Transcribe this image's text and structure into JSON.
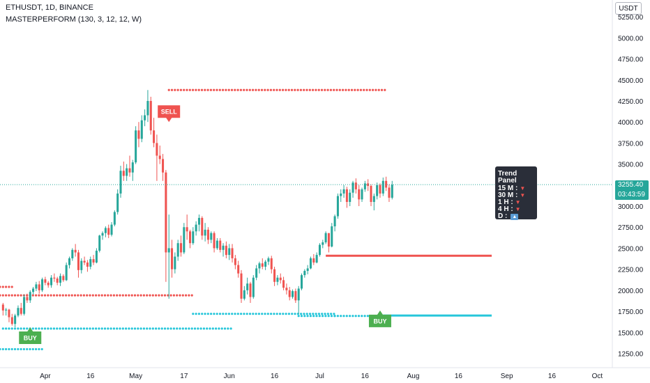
{
  "header": {
    "symbol_line": "ETHUSDT, 1D, BINANCE",
    "indicator_line": "MASTERPERFORM (130, 3, 12, 12, W)"
  },
  "price_axis": {
    "currency": "USDT",
    "last_price": "3255.40",
    "countdown": "03:43:59"
  },
  "trend_panel": {
    "title": "Trend Panel",
    "rows": [
      {
        "label": "15 M :",
        "trend": "down"
      },
      {
        "label": "30 M :",
        "trend": "down"
      },
      {
        "label": "1 H :",
        "trend": "down"
      },
      {
        "label": "4 H :",
        "trend": "down"
      },
      {
        "label": "D :",
        "trend": "up"
      }
    ]
  },
  "chart_data": {
    "type": "candlestick",
    "symbol": "ETHUSDT",
    "interval": "1D",
    "exchange": "BINANCE",
    "y_ticks": [
      1250,
      1500,
      1750,
      2000,
      2250,
      2500,
      2750,
      3000,
      3250,
      3500,
      3750,
      4000,
      4250,
      4500,
      4750,
      5000,
      5250
    ],
    "y_tick_labels": [
      "1250.00",
      "1500.00",
      "1750.00",
      "2000.00",
      "2250.00",
      "2500.00",
      "2750.00",
      "3000.00",
      "3250.00",
      "3500.00",
      "3750.00",
      "4000.00",
      "4250.00",
      "4500.00",
      "4750.00",
      "5000.00",
      "5250.00"
    ],
    "x_ticks": [
      "2021-04-01",
      "2021-04-16",
      "2021-05-01",
      "2021-05-17",
      "2021-06-01",
      "2021-06-16",
      "2021-07-01",
      "2021-07-16",
      "2021-08-01",
      "2021-08-16",
      "2021-09-01",
      "2021-09-16",
      "2021-10-01"
    ],
    "x_tick_labels": [
      "Apr",
      "16",
      "May",
      "17",
      "Jun",
      "16",
      "Jul",
      "16",
      "Aug",
      "16",
      "Sep",
      "16",
      "Oct"
    ],
    "ylim": [
      1080,
      5450
    ],
    "xlim": [
      "2021-03-17",
      "2021-10-06"
    ],
    "last_price": 3255.4,
    "up_color": "#26a69a",
    "down_color": "#ef5350",
    "ohlc_start": "2021-03-18",
    "ohlc": [
      [
        1830,
        1850,
        1700,
        1760
      ],
      [
        1760,
        1790,
        1700,
        1770
      ],
      [
        1770,
        1780,
        1620,
        1680
      ],
      [
        1680,
        1720,
        1580,
        1600
      ],
      [
        1600,
        1720,
        1560,
        1700
      ],
      [
        1700,
        1820,
        1680,
        1790
      ],
      [
        1790,
        1850,
        1700,
        1720
      ],
      [
        1720,
        1950,
        1700,
        1920
      ],
      [
        1920,
        1960,
        1850,
        1880
      ],
      [
        1880,
        2000,
        1850,
        1980
      ],
      [
        1980,
        2040,
        1950,
        2020
      ],
      [
        2020,
        2100,
        1990,
        2070
      ],
      [
        2070,
        2110,
        1960,
        2000
      ],
      [
        2000,
        2150,
        1980,
        2130
      ],
      [
        2130,
        2160,
        2060,
        2090
      ],
      [
        2090,
        2110,
        2030,
        2060
      ],
      [
        2060,
        2180,
        2030,
        2150
      ],
      [
        2150,
        2200,
        2100,
        2140
      ],
      [
        2140,
        2160,
        2060,
        2090
      ],
      [
        2090,
        2200,
        2050,
        2170
      ],
      [
        2170,
        2190,
        2100,
        2120
      ],
      [
        2120,
        2330,
        2110,
        2300
      ],
      [
        2300,
        2400,
        2260,
        2380
      ],
      [
        2380,
        2500,
        2350,
        2480
      ],
      [
        2480,
        2550,
        2400,
        2450
      ],
      [
        2450,
        2480,
        2150,
        2240
      ],
      [
        2240,
        2380,
        2200,
        2350
      ],
      [
        2350,
        2400,
        2300,
        2330
      ],
      [
        2330,
        2360,
        2220,
        2280
      ],
      [
        2280,
        2400,
        2250,
        2370
      ],
      [
        2370,
        2420,
        2300,
        2330
      ],
      [
        2330,
        2500,
        2320,
        2470
      ],
      [
        2470,
        2660,
        2450,
        2650
      ],
      [
        2650,
        2700,
        2600,
        2680
      ],
      [
        2680,
        2760,
        2630,
        2740
      ],
      [
        2740,
        2780,
        2620,
        2660
      ],
      [
        2660,
        2810,
        2640,
        2780
      ],
      [
        2780,
        2950,
        2760,
        2930
      ],
      [
        2930,
        3200,
        2900,
        3150
      ],
      [
        3150,
        3480,
        3100,
        3420
      ],
      [
        3420,
        3530,
        3300,
        3360
      ],
      [
        3360,
        3500,
        3300,
        3450
      ],
      [
        3450,
        3600,
        3350,
        3400
      ],
      [
        3400,
        3550,
        3300,
        3520
      ],
      [
        3520,
        3950,
        3500,
        3900
      ],
      [
        3900,
        4000,
        3700,
        3800
      ],
      [
        3800,
        4080,
        3760,
        4020
      ],
      [
        4020,
        4150,
        3950,
        4080
      ],
      [
        4080,
        4380,
        4000,
        4250
      ],
      [
        4250,
        4300,
        3850,
        3900
      ],
      [
        3900,
        4050,
        3700,
        3750
      ],
      [
        3750,
        3850,
        3300,
        3600
      ],
      [
        3600,
        3720,
        3500,
        3560
      ],
      [
        3560,
        3620,
        3300,
        3400
      ],
      [
        3400,
        3430,
        2100,
        2450
      ],
      [
        2450,
        2900,
        1900,
        2500
      ],
      [
        2500,
        2600,
        2150,
        2250
      ],
      [
        2250,
        2450,
        2200,
        2400
      ],
      [
        2400,
        2600,
        2350,
        2560
      ],
      [
        2560,
        2650,
        2400,
        2450
      ],
      [
        2450,
        2800,
        2430,
        2750
      ],
      [
        2750,
        2900,
        2600,
        2700
      ],
      [
        2700,
        2720,
        2500,
        2560
      ],
      [
        2560,
        2750,
        2540,
        2700
      ],
      [
        2700,
        2820,
        2650,
        2780
      ],
      [
        2780,
        2900,
        2700,
        2860
      ],
      [
        2860,
        2880,
        2600,
        2650
      ],
      [
        2650,
        2800,
        2580,
        2720
      ],
      [
        2720,
        2750,
        2550,
        2600
      ],
      [
        2600,
        2700,
        2560,
        2680
      ],
      [
        2680,
        2700,
        2450,
        2500
      ],
      [
        2500,
        2620,
        2480,
        2590
      ],
      [
        2590,
        2620,
        2450,
        2480
      ],
      [
        2480,
        2560,
        2400,
        2530
      ],
      [
        2530,
        2580,
        2380,
        2420
      ],
      [
        2420,
        2550,
        2360,
        2500
      ],
      [
        2500,
        2550,
        2330,
        2380
      ],
      [
        2380,
        2420,
        2250,
        2300
      ],
      [
        2300,
        2350,
        2150,
        2200
      ],
      [
        2200,
        2240,
        1850,
        1900
      ],
      [
        1900,
        2050,
        1880,
        2000
      ],
      [
        2000,
        2150,
        1950,
        2080
      ],
      [
        2080,
        2100,
        1850,
        1920
      ],
      [
        1920,
        2180,
        1900,
        2150
      ],
      [
        2150,
        2300,
        2120,
        2260
      ],
      [
        2260,
        2340,
        2200,
        2320
      ],
      [
        2320,
        2380,
        2250,
        2280
      ],
      [
        2280,
        2360,
        2240,
        2340
      ],
      [
        2340,
        2400,
        2300,
        2380
      ],
      [
        2380,
        2410,
        2200,
        2250
      ],
      [
        2250,
        2280,
        2050,
        2100
      ],
      [
        2100,
        2180,
        2060,
        2150
      ],
      [
        2150,
        2200,
        2080,
        2120
      ],
      [
        2120,
        2160,
        2000,
        2030
      ],
      [
        2030,
        2080,
        1950,
        2000
      ],
      [
        2000,
        2040,
        1880,
        1920
      ],
      [
        1920,
        2010,
        1900,
        1990
      ],
      [
        1990,
        2020,
        1850,
        1880
      ],
      [
        1880,
        2050,
        1720,
        2020
      ],
      [
        2020,
        2200,
        2000,
        2180
      ],
      [
        2180,
        2250,
        2150,
        2230
      ],
      [
        2230,
        2300,
        2190,
        2260
      ],
      [
        2260,
        2400,
        2250,
        2380
      ],
      [
        2380,
        2430,
        2300,
        2330
      ],
      [
        2330,
        2450,
        2320,
        2420
      ],
      [
        2420,
        2560,
        2400,
        2540
      ],
      [
        2540,
        2600,
        2500,
        2570
      ],
      [
        2570,
        2700,
        2550,
        2680
      ],
      [
        2680,
        2650,
        2450,
        2520
      ],
      [
        2520,
        2800,
        2510,
        2760
      ],
      [
        2760,
        2900,
        2700,
        2880
      ],
      [
        2880,
        3150,
        2850,
        3120
      ],
      [
        3120,
        3200,
        3050,
        3150
      ],
      [
        3150,
        3250,
        3100,
        3200
      ],
      [
        3200,
        3230,
        2980,
        3050
      ],
      [
        3050,
        3200,
        3000,
        3160
      ],
      [
        3160,
        3300,
        3100,
        3280
      ],
      [
        3280,
        3330,
        3150,
        3200
      ],
      [
        3200,
        3250,
        3000,
        3080
      ],
      [
        3080,
        3220,
        3050,
        3200
      ],
      [
        3200,
        3300,
        3170,
        3270
      ],
      [
        3270,
        3320,
        3180,
        3240
      ],
      [
        3240,
        3260,
        3000,
        3050
      ],
      [
        3050,
        3150,
        2950,
        3120
      ],
      [
        3120,
        3280,
        3080,
        3250
      ],
      [
        3250,
        3270,
        3100,
        3150
      ],
      [
        3150,
        3340,
        3120,
        3300
      ],
      [
        3300,
        3350,
        3180,
        3220
      ],
      [
        3220,
        3260,
        3050,
        3100
      ],
      [
        3100,
        3300,
        3080,
        3255
      ]
    ],
    "signals": [
      {
        "label": "BUY",
        "date": "2021-03-27",
        "price": 1560,
        "color": "#4caf50"
      },
      {
        "label": "SELL",
        "date": "2021-05-12",
        "price": 4000,
        "color": "#ef5350"
      },
      {
        "label": "BUY",
        "date": "2021-07-21",
        "price": 1760,
        "color": "#4caf50"
      }
    ],
    "levels": [
      {
        "kind": "dotted",
        "color": "#ef5350",
        "price": 4380,
        "from": "2021-05-12",
        "to": "2021-07-23"
      },
      {
        "kind": "dotted",
        "color": "#ef5350",
        "price": 2040,
        "from": "2021-03-17",
        "to": "2021-03-21"
      },
      {
        "kind": "dotted",
        "color": "#ef5350",
        "price": 1940,
        "from": "2021-03-17",
        "to": "2021-05-20"
      },
      {
        "kind": "dotted",
        "color": "#26c6da",
        "price": 1300,
        "from": "2021-03-17",
        "to": "2021-03-31"
      },
      {
        "kind": "dotted",
        "color": "#26c6da",
        "price": 1545,
        "from": "2021-03-18",
        "to": "2021-06-02"
      },
      {
        "kind": "dotted",
        "color": "#26c6da",
        "price": 1720,
        "from": "2021-05-20",
        "to": "2021-07-06"
      },
      {
        "kind": "dotted",
        "color": "#26c6da",
        "price": 1695,
        "from": "2021-06-24",
        "to": "2021-07-06"
      },
      {
        "kind": "dotted",
        "color": "#26c6da",
        "price": 1695,
        "from": "2021-07-06",
        "to": "2021-07-22"
      },
      {
        "kind": "solid",
        "color": "#ef5350",
        "price": 2410,
        "from": "2021-07-03",
        "to": "2021-08-27"
      },
      {
        "kind": "solid",
        "color": "#26c6da",
        "price": 1700,
        "from": "2021-07-22",
        "to": "2021-08-27"
      }
    ],
    "legend": "none",
    "grid": false
  }
}
